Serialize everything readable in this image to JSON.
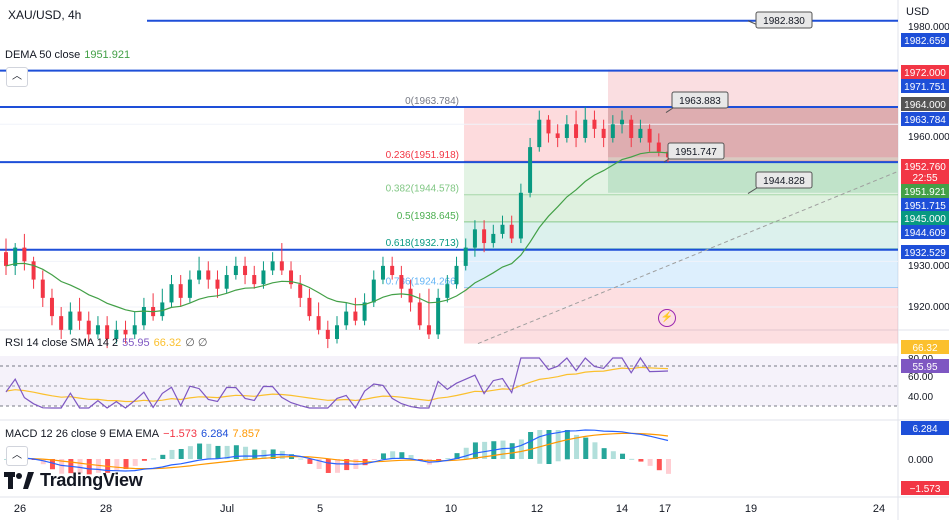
{
  "symbol_title": "XAU/USD, 4h",
  "currency": "USD",
  "dema": {
    "label": "DEMA 50 close",
    "value": "1951.921",
    "color": "#43a047"
  },
  "rsi_legend": {
    "label": "RSI 14 close SMA 14 2",
    "rsi": "55.95",
    "sma": "66.32",
    "extra": "∅ ∅"
  },
  "macd_legend": {
    "label": "MACD 12 26 close 9 EMA EMA",
    "hist": "−1.573",
    "macd": "6.284",
    "signal": "7.857"
  },
  "brand": "TradingView",
  "icons": {
    "collapse": "chevron-up-icon",
    "flash": "lightning-icon",
    "logo": "tradingview-logo-icon"
  },
  "chart_data": {
    "type": "candlestick",
    "title": "XAU/USD, 4h",
    "x_ticks": [
      "26",
      "28",
      "Jul",
      "5",
      "10",
      "12",
      "14",
      "17",
      "19",
      "24"
    ],
    "price_ticks": [
      "1980.000",
      "1960.000",
      "1930.000",
      "1920.000"
    ],
    "horizontal_levels": [
      1982.659,
      1971.751,
      1963.784,
      1951.715,
      1932.529
    ],
    "axis_labels": [
      {
        "text": "1982.659",
        "color": "#1e4fd8"
      },
      {
        "text": "1972.000",
        "color": "#f23645"
      },
      {
        "text": "1971.751",
        "color": "#1e4fd8"
      },
      {
        "text": "1964.000",
        "color": "#555555"
      },
      {
        "text": "1963.784",
        "color": "#1e4fd8"
      },
      {
        "text": "1952.760",
        "color": "#f23645"
      },
      {
        "text": "22:55",
        "color": "#f23645"
      },
      {
        "text": "1951.921",
        "color": "#43a047"
      },
      {
        "text": "1951.715",
        "color": "#1e4fd8"
      },
      {
        "text": "1945.000",
        "color": "#089981"
      },
      {
        "text": "1944.609",
        "color": "#1e4fd8"
      },
      {
        "text": "1932.529",
        "color": "#1e4fd8"
      }
    ],
    "fib_levels": [
      {
        "label": "0(1963.784)",
        "color": "#787b86"
      },
      {
        "label": "0.236(1951.918)",
        "color": "#f23645"
      },
      {
        "label": "0.382(1944.578)",
        "color": "#81c784"
      },
      {
        "label": "0.5(1938.645)",
        "color": "#4caf50"
      },
      {
        "label": "0.618(1932.713)",
        "color": "#089981"
      },
      {
        "label": "0.786(1924.266)",
        "color": "#64b5f6"
      }
    ],
    "callouts": [
      "1982.830",
      "1963.883",
      "1951.747",
      "1944.828"
    ],
    "candles": [
      [
        1932,
        1929,
        1935,
        1927
      ],
      [
        1929,
        1933,
        1934,
        1927
      ],
      [
        1933,
        1930,
        1936,
        1928
      ],
      [
        1930,
        1926,
        1931,
        1924
      ],
      [
        1926,
        1922,
        1928,
        1920
      ],
      [
        1922,
        1918,
        1924,
        1916
      ],
      [
        1918,
        1915,
        1920,
        1913
      ],
      [
        1915,
        1919,
        1921,
        1914
      ],
      [
        1919,
        1917,
        1922,
        1915
      ],
      [
        1917,
        1914,
        1919,
        1912
      ],
      [
        1914,
        1916,
        1918,
        1913
      ],
      [
        1916,
        1913,
        1918,
        1911
      ],
      [
        1913,
        1915,
        1917,
        1912
      ],
      [
        1915,
        1914,
        1917,
        1912
      ],
      [
        1914,
        1916,
        1919,
        1913
      ],
      [
        1916,
        1920,
        1922,
        1915
      ],
      [
        1920,
        1918,
        1923,
        1917
      ],
      [
        1918,
        1921,
        1924,
        1917
      ],
      [
        1921,
        1925,
        1927,
        1920
      ],
      [
        1925,
        1922,
        1927,
        1920
      ],
      [
        1922,
        1926,
        1928,
        1921
      ],
      [
        1926,
        1928,
        1931,
        1925
      ],
      [
        1928,
        1926,
        1930,
        1924
      ],
      [
        1926,
        1924,
        1928,
        1922
      ],
      [
        1924,
        1927,
        1929,
        1923
      ],
      [
        1927,
        1929,
        1931,
        1926
      ],
      [
        1929,
        1927,
        1931,
        1925
      ],
      [
        1927,
        1925,
        1929,
        1924
      ],
      [
        1925,
        1928,
        1930,
        1924
      ],
      [
        1928,
        1930,
        1932,
        1927
      ],
      [
        1930,
        1928,
        1934,
        1927
      ],
      [
        1928,
        1925,
        1930,
        1924
      ],
      [
        1925,
        1922,
        1927,
        1920
      ],
      [
        1922,
        1918,
        1924,
        1917
      ],
      [
        1918,
        1915,
        1921,
        1914
      ],
      [
        1915,
        1913,
        1917,
        1911
      ],
      [
        1913,
        1916,
        1918,
        1912
      ],
      [
        1916,
        1919,
        1921,
        1915
      ],
      [
        1919,
        1917,
        1922,
        1916
      ],
      [
        1917,
        1921,
        1923,
        1916
      ],
      [
        1921,
        1926,
        1928,
        1920
      ],
      [
        1926,
        1929,
        1931,
        1925
      ],
      [
        1929,
        1927,
        1931,
        1926
      ],
      [
        1927,
        1924,
        1929,
        1922
      ],
      [
        1924,
        1921,
        1926,
        1919
      ],
      [
        1921,
        1916,
        1923,
        1915
      ],
      [
        1916,
        1914,
        1924,
        1913
      ],
      [
        1914,
        1922,
        1924,
        1913
      ],
      [
        1922,
        1925,
        1927,
        1921
      ],
      [
        1925,
        1929,
        1931,
        1924
      ],
      [
        1929,
        1933,
        1935,
        1928
      ],
      [
        1933,
        1937,
        1939,
        1931
      ],
      [
        1937,
        1934,
        1939,
        1932
      ],
      [
        1934,
        1936,
        1938,
        1933
      ],
      [
        1936,
        1938,
        1940,
        1935
      ],
      [
        1938,
        1935,
        1940,
        1934
      ],
      [
        1935,
        1945,
        1947,
        1934
      ],
      [
        1945,
        1955,
        1957,
        1944
      ],
      [
        1955,
        1961,
        1963,
        1954
      ],
      [
        1961,
        1958,
        1962,
        1956
      ],
      [
        1958,
        1957,
        1960,
        1955
      ],
      [
        1957,
        1960,
        1962,
        1956
      ],
      [
        1960,
        1957,
        1963,
        1955
      ],
      [
        1957,
        1961,
        1963.8,
        1956
      ],
      [
        1961,
        1959,
        1963,
        1957
      ],
      [
        1959,
        1957,
        1961,
        1955
      ],
      [
        1957,
        1960,
        1962,
        1956
      ],
      [
        1960,
        1961,
        1963,
        1958
      ],
      [
        1961,
        1957,
        1962,
        1955
      ],
      [
        1957,
        1959,
        1961,
        1956
      ],
      [
        1959,
        1956,
        1960,
        1954
      ],
      [
        1956,
        1954,
        1958,
        1953
      ],
      [
        1954,
        1952.76,
        1955,
        1951.7
      ]
    ],
    "rsi_ticks": [
      "80.00",
      "60.00",
      "40.00"
    ],
    "rsi_labels": [
      {
        "text": "66.32",
        "color": "#fbc02d"
      },
      {
        "text": "55.95",
        "color": "#7e57c2"
      }
    ],
    "macd_ticks": [
      "0.000"
    ],
    "macd_labels": [
      {
        "text": "6.284",
        "color": "#1e4fd8"
      },
      {
        "text": "−1.573",
        "color": "#f23645"
      }
    ]
  }
}
